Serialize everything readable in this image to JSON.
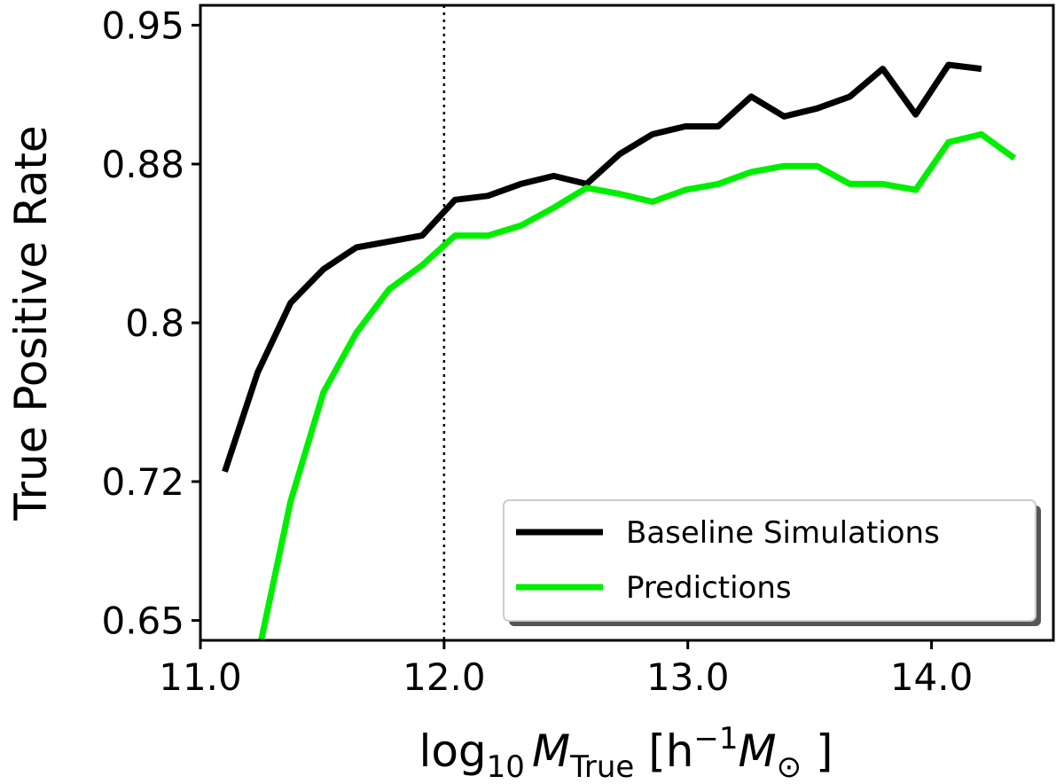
{
  "chart_data": {
    "type": "line",
    "title": "",
    "xlabel": {
      "prefix": "log",
      "sub10": "10",
      "m1": "M",
      "sub1": "True",
      "bracket_open": " [h",
      "sup": "−1",
      "m2": "M",
      "sub2": "⊙",
      "bracket_close": " ]"
    },
    "ylabel": "True Positive Rate",
    "xlim": [
      11.0,
      14.5
    ],
    "ylim": [
      0.64,
      0.96
    ],
    "xticks": [
      11.0,
      12.0,
      13.0,
      14.0
    ],
    "xtick_labels": [
      "11.0",
      "12.0",
      "13.0",
      "14.0"
    ],
    "yticks": [
      0.65,
      0.72,
      0.8,
      0.88,
      0.95
    ],
    "ytick_labels": [
      "0.65",
      "0.72",
      "0.8",
      "0.88",
      "0.95"
    ],
    "vline_x": 12.0,
    "grid": false,
    "legend_position": "lower-right",
    "series": [
      {
        "name": "Baseline Simulations",
        "color": "#000000",
        "x": [
          11.1,
          11.235,
          11.37,
          11.505,
          11.64,
          11.775,
          11.91,
          12.045,
          12.18,
          12.315,
          12.45,
          12.585,
          12.72,
          12.855,
          12.99,
          13.125,
          13.26,
          13.395,
          13.53,
          13.665,
          13.8,
          13.935,
          14.07,
          14.205
        ],
        "y": [
          0.725,
          0.775,
          0.81,
          0.827,
          0.838,
          0.841,
          0.844,
          0.862,
          0.864,
          0.87,
          0.874,
          0.87,
          0.885,
          0.895,
          0.899,
          0.899,
          0.914,
          0.904,
          0.908,
          0.914,
          0.928,
          0.905,
          0.93,
          0.928
        ]
      },
      {
        "name": "Predictions",
        "color": "#00ee00",
        "x": [
          11.215,
          11.37,
          11.505,
          11.64,
          11.775,
          11.91,
          12.045,
          12.18,
          12.315,
          12.45,
          12.585,
          12.72,
          12.855,
          12.99,
          13.125,
          13.26,
          13.395,
          13.53,
          13.665,
          13.8,
          13.935,
          14.07,
          14.205,
          14.34
        ],
        "y": [
          0.62,
          0.71,
          0.765,
          0.795,
          0.817,
          0.829,
          0.844,
          0.844,
          0.849,
          0.858,
          0.868,
          0.865,
          0.861,
          0.867,
          0.87,
          0.876,
          0.879,
          0.879,
          0.87,
          0.87,
          0.867,
          0.891,
          0.895,
          0.883
        ]
      }
    ]
  }
}
